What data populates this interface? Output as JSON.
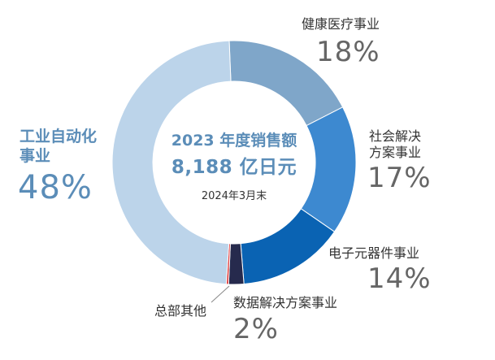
{
  "chart_data": {
    "type": "pie",
    "center": {
      "title": "2023 年度销售额",
      "total": "8,188 亿日元",
      "date": "2024年3月末"
    },
    "slices": [
      {
        "label": "健康医疗事业",
        "label_lines": [
          "健康医疗事业"
        ],
        "value": 18,
        "display": "18%",
        "color": "#7fa6c9"
      },
      {
        "label": "社会解决方案事业",
        "label_lines": [
          "社会解决",
          "方案事业"
        ],
        "value": 17,
        "display": "17%",
        "color": "#3d89d0"
      },
      {
        "label": "电子元器件事业",
        "label_lines": [
          "电子元器件事业"
        ],
        "value": 14,
        "display": "14%",
        "color": "#0a63b3"
      },
      {
        "label": "数据解决方案事业",
        "label_lines": [
          "数据解决方案事业"
        ],
        "value": 2,
        "display": "2%",
        "color": "#262a4d"
      },
      {
        "label": "总部其他",
        "label_lines": [
          "总部其他"
        ],
        "value": 0.3,
        "display": "",
        "color": "#e03a3a"
      },
      {
        "label": "工业自动化事业",
        "label_lines": [
          "工业自动化",
          "事业"
        ],
        "value": 48,
        "display": "48%",
        "color": "#bcd4ea"
      }
    ]
  }
}
